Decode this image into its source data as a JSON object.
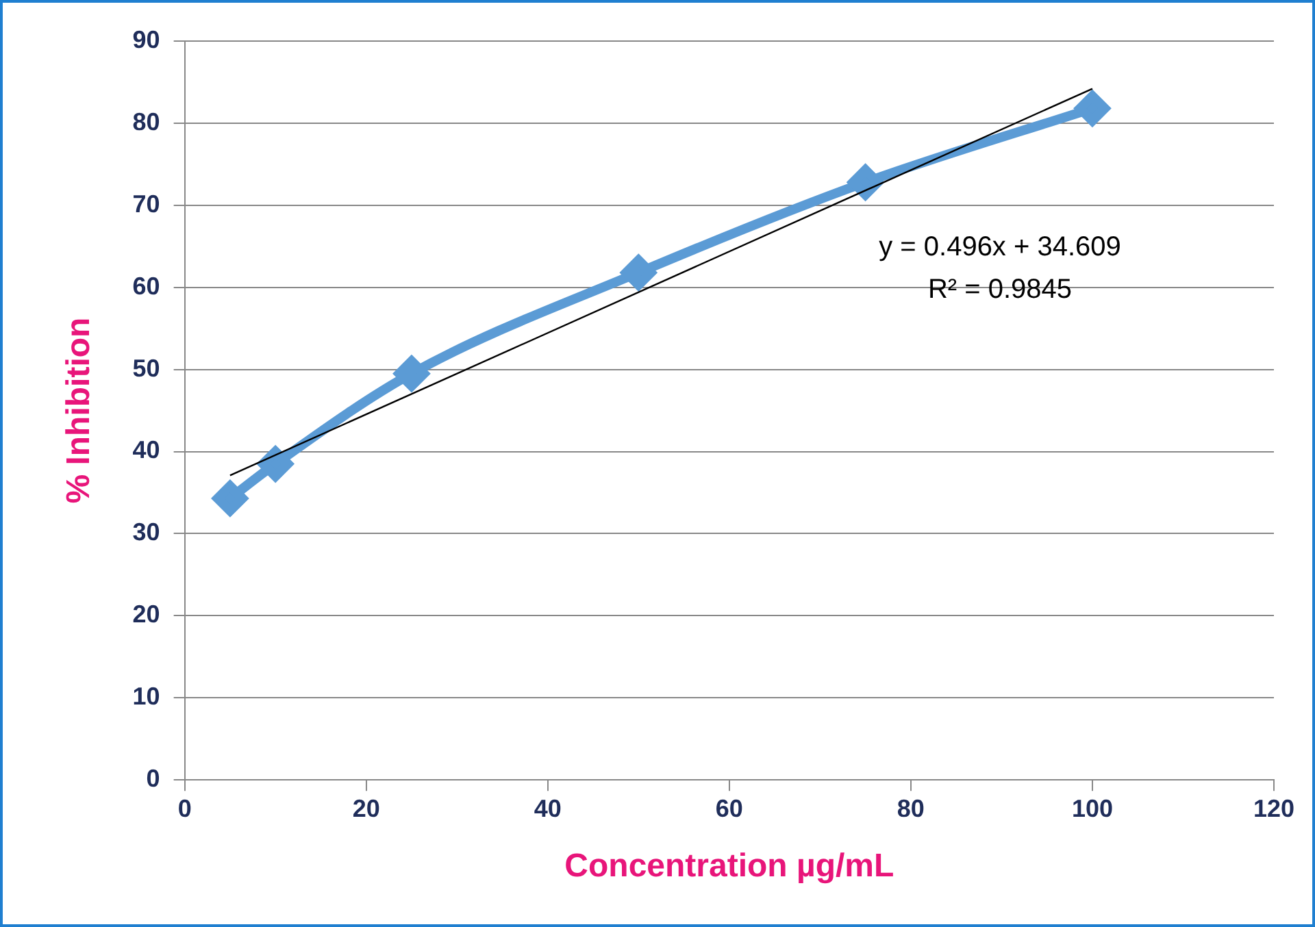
{
  "chart_data": {
    "type": "line",
    "xlabel": "Concentration µg/mL",
    "ylabel": "% Inhibition",
    "xlim": [
      0,
      120
    ],
    "xticks": [
      0,
      20,
      40,
      60,
      80,
      100,
      120
    ],
    "ylim": [
      0,
      90
    ],
    "yticks": [
      0,
      10,
      20,
      30,
      40,
      50,
      60,
      70,
      80,
      90
    ],
    "grid": "y",
    "legend": false,
    "marker": "diamond",
    "series": [
      {
        "color": "#5b9bd5",
        "x": [
          5,
          10,
          25,
          50,
          75,
          100
        ],
        "values": [
          34.3,
          38.5,
          49.5,
          61.8,
          72.8,
          81.8
        ]
      },
      {
        "type": "line",
        "color": "#000000",
        "marker": "none",
        "x": [
          5,
          100
        ],
        "values": [
          37.1,
          84.2
        ]
      }
    ],
    "annotations": [
      "y = 0.496x + 34.609",
      "R² = 0.9845"
    ]
  }
}
